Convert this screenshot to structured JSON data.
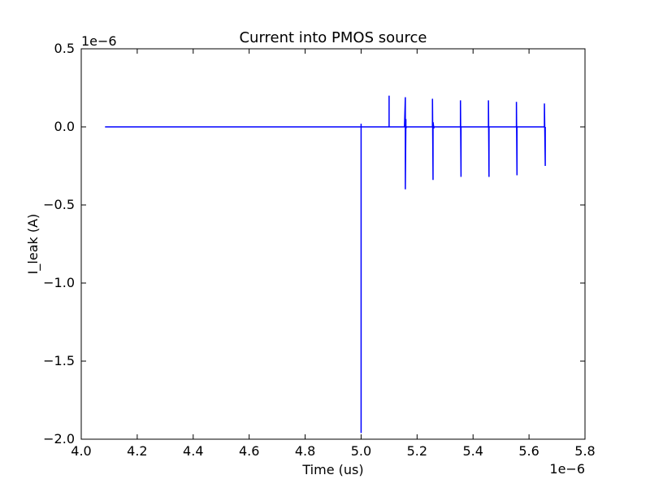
{
  "chart_data": {
    "type": "line",
    "title": "Current into PMOS source",
    "xlabel": "Time (us)",
    "ylabel": "I_leak (A)",
    "x_offset_label": "1e−6",
    "y_offset_label": "1e−6",
    "xlim": [
      4.0,
      5.8
    ],
    "ylim": [
      -2.0,
      0.5
    ],
    "x_ticks": [
      4.0,
      4.2,
      4.4,
      4.6,
      4.8,
      5.0,
      5.2,
      5.4,
      5.6,
      5.8
    ],
    "x_tick_labels": [
      "4.0",
      "4.2",
      "4.4",
      "4.6",
      "4.8",
      "5.0",
      "5.2",
      "5.4",
      "5.6",
      "5.8"
    ],
    "y_ticks": [
      0.5,
      0.0,
      -0.5,
      -1.0,
      -1.5,
      -2.0
    ],
    "y_tick_labels": [
      "0.5",
      "0.0",
      "−0.5",
      "−1.0",
      "−1.5",
      "−2.0"
    ],
    "grid": false,
    "series": [
      {
        "color": "#0000ff",
        "x": [
          4.085,
          5.0,
          5.0,
          5.0,
          5.0,
          5.002,
          5.1,
          5.1,
          5.1,
          5.103,
          5.155,
          5.158,
          5.158,
          5.158,
          5.16,
          5.16,
          5.162,
          5.165,
          5.255,
          5.255,
          5.257,
          5.257,
          5.26,
          5.26,
          5.355,
          5.355,
          5.357,
          5.357,
          5.36,
          5.455,
          5.455,
          5.457,
          5.457,
          5.46,
          5.555,
          5.555,
          5.557,
          5.557,
          5.56,
          5.655,
          5.655,
          5.658,
          5.658,
          5.658
        ],
        "y": [
          0.0,
          0.0,
          0.02,
          -1.96,
          0.0,
          0.0,
          0.0,
          0.2,
          0.0,
          0.0,
          0.0,
          0.19,
          0.0,
          -0.4,
          0.05,
          -0.01,
          0.0,
          0.0,
          0.0,
          0.18,
          -0.34,
          0.03,
          -0.01,
          0.0,
          0.0,
          0.17,
          -0.32,
          0.0,
          0.0,
          0.0,
          0.17,
          -0.32,
          0.0,
          0.0,
          0.0,
          0.16,
          -0.31,
          0.0,
          0.0,
          0.0,
          0.15,
          -0.25,
          0.0,
          0.0
        ]
      }
    ]
  }
}
